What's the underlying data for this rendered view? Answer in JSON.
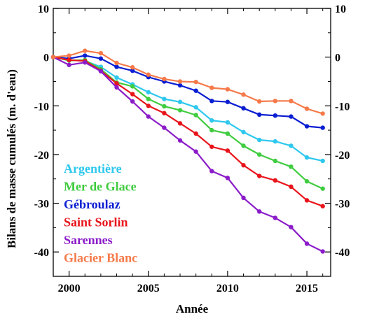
{
  "chart_data": {
    "type": "line",
    "xlabel": "Année",
    "ylabel": "Bilans de masse cumulés (m. d'eau)",
    "xlim": [
      1999,
      2016.5
    ],
    "ylim": [
      -45,
      10
    ],
    "xticks": [
      2000,
      2005,
      2010,
      2015
    ],
    "yticks": [
      10,
      0,
      -10,
      -20,
      -30,
      -40
    ],
    "grid": false,
    "legend_placement": "bottom-left",
    "x": [
      1999,
      2000,
      2001,
      2002,
      2003,
      2004,
      2005,
      2006,
      2007,
      2008,
      2009,
      2010,
      2011,
      2012,
      2013,
      2014,
      2015,
      2016
    ],
    "series": [
      {
        "name": "Argentière",
        "color": "#2ec8ee",
        "values": [
          0,
          -0.6,
          -0.8,
          -2.0,
          -4.2,
          -5.6,
          -7.2,
          -8.6,
          -9.2,
          -10.3,
          -13.0,
          -13.4,
          -15.4,
          -17.0,
          -17.3,
          -18.2,
          -20.6,
          -21.3
        ]
      },
      {
        "name": "Mer de Glace",
        "color": "#3fcc3f",
        "values": [
          0,
          -0.7,
          -0.6,
          -2.5,
          -5.2,
          -6.0,
          -8.6,
          -10.1,
          -10.9,
          -11.9,
          -15.0,
          -15.7,
          -18.2,
          -20.0,
          -21.3,
          -22.5,
          -25.5,
          -27.0
        ]
      },
      {
        "name": "Gébroulaz",
        "color": "#0a1ed2",
        "values": [
          0,
          -0.3,
          0.3,
          -0.3,
          -2.0,
          -2.8,
          -4.1,
          -5.0,
          -5.8,
          -6.9,
          -9.0,
          -9.2,
          -10.5,
          -11.8,
          -12.0,
          -12.2,
          -14.2,
          -14.5
        ]
      },
      {
        "name": "Saint Sorlin",
        "color": "#e8141b",
        "values": [
          0,
          -0.6,
          -0.8,
          -2.8,
          -5.4,
          -7.6,
          -10.0,
          -11.5,
          -13.6,
          -15.7,
          -18.4,
          -19.2,
          -22.2,
          -24.4,
          -25.3,
          -26.6,
          -29.4,
          -30.6
        ]
      },
      {
        "name": "Sarennes",
        "color": "#8b1cc9",
        "values": [
          0,
          -1.6,
          -1.1,
          -2.9,
          -6.2,
          -9.1,
          -12.2,
          -14.5,
          -17.1,
          -19.4,
          -23.4,
          -24.8,
          -28.9,
          -31.7,
          -33.0,
          -34.9,
          -38.3,
          -39.9
        ]
      },
      {
        "name": "Glacier Blanc",
        "color": "#f57a4a",
        "values": [
          0,
          0.3,
          1.3,
          0.8,
          -1.2,
          -2.1,
          -3.6,
          -4.5,
          -5.0,
          -5.1,
          -6.3,
          -6.6,
          -7.7,
          -9.1,
          -9.0,
          -9.0,
          -10.6,
          -11.6
        ]
      }
    ]
  }
}
